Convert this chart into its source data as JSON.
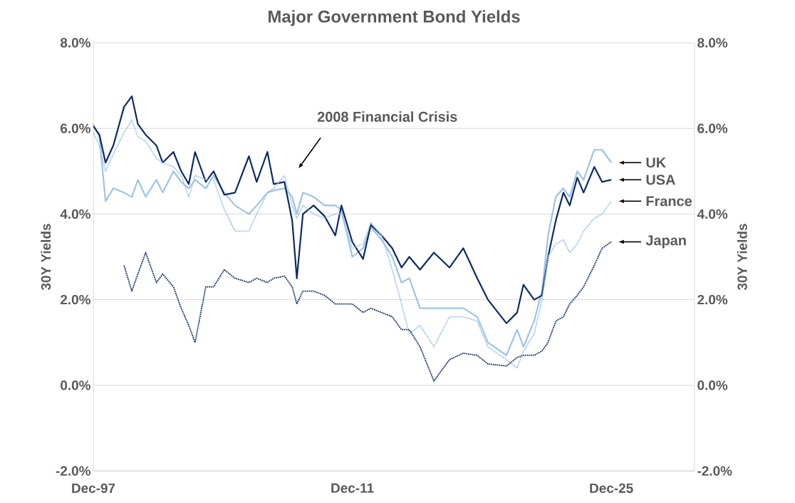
{
  "chart_data": {
    "type": "line",
    "title": "Major Government Bond Yields",
    "ylabel": "30Y Yields",
    "y2label": "30Y Yields",
    "x": [
      "1997-12",
      "1998-04",
      "1998-08",
      "1999-01",
      "1999-08",
      "2000-01",
      "2000-05",
      "2000-10",
      "2001-05",
      "2001-09",
      "2002-04",
      "2002-09",
      "2003-02",
      "2003-06",
      "2004-01",
      "2004-06",
      "2005-01",
      "2005-08",
      "2006-05",
      "2006-10",
      "2007-05",
      "2007-09",
      "2008-04",
      "2008-09",
      "2008-12",
      "2009-04",
      "2009-11",
      "2010-06",
      "2011-01",
      "2011-05",
      "2011-12",
      "2012-07",
      "2012-12",
      "2013-07",
      "2014-02",
      "2014-08",
      "2015-01",
      "2015-08",
      "2016-05",
      "2017-03",
      "2017-12",
      "2018-09",
      "2019-04",
      "2020-04",
      "2020-11",
      "2021-03",
      "2021-10",
      "2022-03",
      "2022-07",
      "2022-12",
      "2023-05",
      "2023-09",
      "2024-02",
      "2024-06",
      "2025-01",
      "2025-06",
      "2025-12"
    ],
    "series": [
      {
        "name": "UK",
        "color": "#9dc3e6",
        "line_style": "solid",
        "values": [
          6.1,
          5.8,
          4.3,
          4.6,
          4.5,
          4.4,
          4.8,
          4.4,
          4.8,
          4.5,
          5.0,
          4.75,
          4.6,
          4.8,
          4.6,
          4.9,
          4.5,
          4.2,
          4.0,
          4.2,
          4.5,
          4.55,
          4.6,
          4.4,
          4.0,
          4.5,
          4.4,
          4.2,
          4.2,
          4.1,
          3.0,
          3.2,
          3.7,
          3.4,
          3.0,
          2.4,
          2.5,
          1.8,
          1.8,
          1.8,
          1.8,
          1.6,
          1.0,
          0.7,
          1.3,
          0.9,
          1.5,
          2.2,
          3.5,
          4.4,
          4.6,
          4.4,
          5.0,
          4.8,
          5.5,
          5.5,
          5.2
        ]
      },
      {
        "name": "USA",
        "color": "#0d2a63",
        "line_style": "solid",
        "values": [
          6.05,
          5.85,
          5.2,
          5.6,
          6.5,
          6.75,
          6.1,
          5.85,
          5.6,
          5.2,
          5.45,
          5.0,
          4.7,
          5.45,
          4.75,
          5.0,
          4.45,
          4.5,
          5.35,
          4.75,
          5.45,
          4.7,
          4.75,
          3.85,
          2.5,
          4.0,
          4.2,
          3.95,
          3.5,
          4.2,
          3.35,
          2.95,
          3.75,
          3.5,
          3.2,
          2.75,
          3.0,
          2.7,
          3.1,
          2.75,
          3.2,
          2.5,
          2.0,
          1.45,
          1.7,
          2.35,
          2.0,
          2.1,
          3.0,
          3.85,
          4.5,
          4.2,
          4.85,
          4.5,
          5.1,
          4.75,
          4.8
        ]
      },
      {
        "name": "France",
        "color": "#9dc3e6",
        "line_style": "dotted",
        "values": [
          5.9,
          5.6,
          5.0,
          5.4,
          5.9,
          6.2,
          5.8,
          5.7,
          5.3,
          5.2,
          5.1,
          4.9,
          4.4,
          4.9,
          4.8,
          4.8,
          4.1,
          3.6,
          3.6,
          4.0,
          4.5,
          4.6,
          4.9,
          4.2,
          3.9,
          4.2,
          4.0,
          3.9,
          4.0,
          4.0,
          3.2,
          3.3,
          3.8,
          3.5,
          2.7,
          1.9,
          1.2,
          1.4,
          0.9,
          1.6,
          1.6,
          1.5,
          0.9,
          0.6,
          0.4,
          0.8,
          1.2,
          2.0,
          3.0,
          3.3,
          3.4,
          3.1,
          3.3,
          3.6,
          3.9,
          4.0,
          4.3
        ]
      },
      {
        "name": "Japan",
        "color": "#0d2a63",
        "line_style": "dotted",
        "values": [
          null,
          null,
          null,
          null,
          2.8,
          2.2,
          2.6,
          3.1,
          2.4,
          2.6,
          2.3,
          1.8,
          1.4,
          1.0,
          2.3,
          2.3,
          2.7,
          2.5,
          2.4,
          2.5,
          2.4,
          2.5,
          2.55,
          2.3,
          1.9,
          2.2,
          2.2,
          2.1,
          1.9,
          1.9,
          1.9,
          1.7,
          1.8,
          1.7,
          1.6,
          1.3,
          1.3,
          0.9,
          0.1,
          0.6,
          0.75,
          0.7,
          0.5,
          0.45,
          0.65,
          0.7,
          0.7,
          0.8,
          1.0,
          1.5,
          1.6,
          1.9,
          2.1,
          2.3,
          2.8,
          3.2,
          3.35
        ]
      }
    ],
    "xlim": [
      "1997-12",
      "2030-06"
    ],
    "xticks": [
      {
        "value": "1997-12",
        "label": "Dec-97"
      },
      {
        "value": "2011-12",
        "label": "Dec-11"
      },
      {
        "value": "2025-12",
        "label": "Dec-25"
      }
    ],
    "ylim": [
      -2,
      8
    ],
    "yticks": [
      {
        "value": -2,
        "label": "-2.0%"
      },
      {
        "value": 0,
        "label": "0.0%"
      },
      {
        "value": 2,
        "label": "2.0%"
      },
      {
        "value": 4,
        "label": "4.0%"
      },
      {
        "value": 6,
        "label": "6.0%"
      },
      {
        "value": 8,
        "label": "8.0%"
      }
    ],
    "y2lim": [
      -2,
      8
    ],
    "y2ticks": [
      {
        "value": -2,
        "label": "-2.0%"
      },
      {
        "value": 0,
        "label": "0.0%"
      },
      {
        "value": 2,
        "label": "2.0%"
      },
      {
        "value": 4,
        "label": "4.0%"
      },
      {
        "value": 6,
        "label": "6.0%"
      },
      {
        "value": 8,
        "label": "8.0%"
      }
    ],
    "grid": "y",
    "annotations": [
      "2008 Financial Crisis"
    ]
  }
}
